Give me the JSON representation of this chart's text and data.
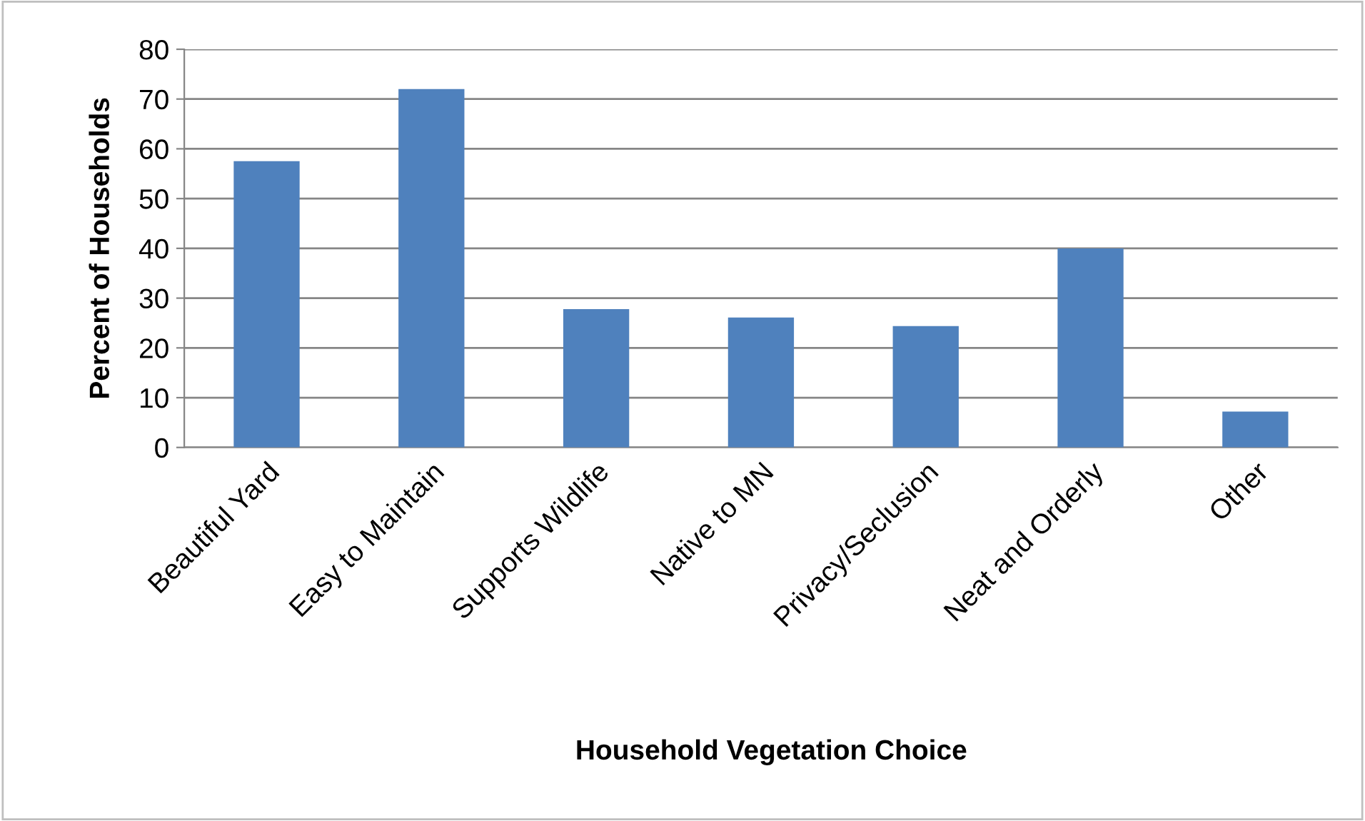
{
  "chart_data": {
    "type": "bar",
    "xlabel": "Household Vegetation Choice",
    "ylabel": "Percent of Households",
    "categories": [
      "Beautiful Yard",
      "Easy to Maintain",
      "Supports Wildlife",
      "Native to MN",
      "Privacy/Seclusion",
      "Neat and Orderly",
      "Other"
    ],
    "values": [
      57.5,
      72,
      27.8,
      26.1,
      24.4,
      40,
      7.2
    ],
    "color": "#4f81bd",
    "ylim": [
      0,
      80
    ],
    "yticks": [
      0,
      10,
      20,
      30,
      40,
      50,
      60,
      70,
      80
    ],
    "grid": "y",
    "legend": false
  }
}
